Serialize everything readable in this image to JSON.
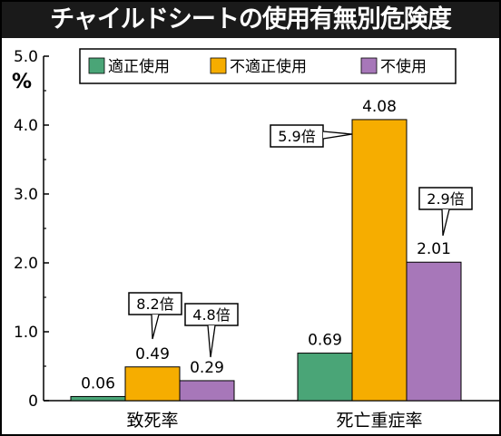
{
  "title": "チャイルドシートの使用有無別危険度",
  "colors": {
    "proper": "#4aa577",
    "improper": "#f6ad00",
    "nonuse": "#a777b9"
  },
  "legend": [
    "適正使用",
    "不適正使用",
    "不使用"
  ],
  "chart_data": {
    "type": "bar",
    "title": "チャイルドシートの使用有無別危険度",
    "ylabel": "%",
    "ylim": [
      0,
      5.0
    ],
    "yticks": [
      "0",
      "1.0",
      "2.0",
      "3.0",
      "4.0",
      "5.0"
    ],
    "categories": [
      "致死率",
      "死亡重症率"
    ],
    "series": [
      {
        "name": "適正使用",
        "values": [
          0.06,
          0.69
        ],
        "labels": [
          "0.06",
          "0.69"
        ]
      },
      {
        "name": "不適正使用",
        "values": [
          0.49,
          4.08
        ],
        "labels": [
          "0.49",
          "4.08"
        ]
      },
      {
        "name": "不使用",
        "values": [
          0.29,
          2.01
        ],
        "labels": [
          "0.29",
          "2.01"
        ]
      }
    ],
    "annotations": [
      {
        "category": 0,
        "series": 1,
        "text": "8.2倍"
      },
      {
        "category": 0,
        "series": 2,
        "text": "4.8倍"
      },
      {
        "category": 1,
        "series": 1,
        "text": "5.9倍"
      },
      {
        "category": 1,
        "series": 2,
        "text": "2.9倍"
      }
    ],
    "legend_position": "top-right",
    "grid": false
  }
}
